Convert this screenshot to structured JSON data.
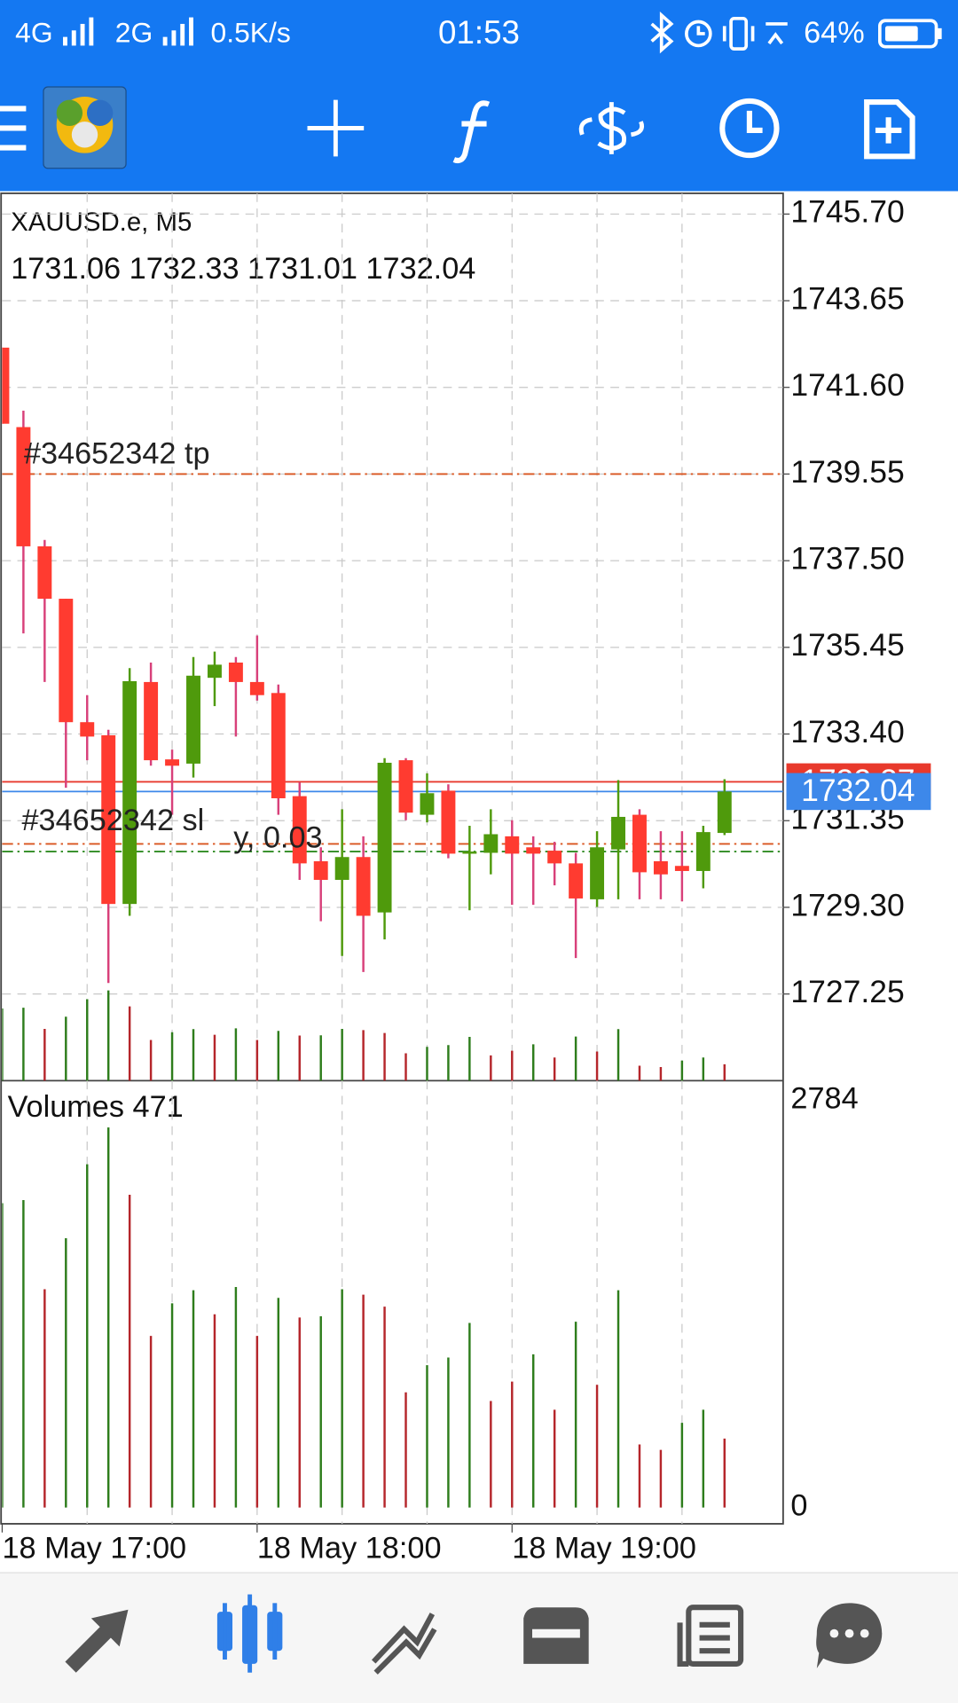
{
  "status_bar": {
    "network_1": "4G",
    "network_2": "2G",
    "speed": "0.5K/s",
    "time": "01:53",
    "battery": "64%"
  },
  "chart_data": [
    {
      "type": "candlestick",
      "title": "XAUUSD.e, M5",
      "categories": [
        "18 May 17:00",
        null,
        null,
        null,
        null,
        null,
        null,
        null,
        null,
        null,
        null,
        null,
        "18 May 18:00",
        null,
        null,
        null,
        null,
        null,
        null,
        null,
        null,
        null,
        null,
        null,
        "18 May 19:00",
        null,
        null,
        null,
        null,
        null,
        null,
        null,
        null,
        null,
        null
      ],
      "open": [
        1742.54,
        1740.66,
        1737.84,
        1736.6,
        1733.68,
        1733.37,
        1729.38,
        1734.63,
        1732.8,
        1732.7,
        1734.73,
        1735.09,
        1734.63,
        1734.37,
        1731.93,
        1730.39,
        1729.95,
        1730.49,
        1729.18,
        1732.78,
        1731.49,
        1732.06,
        1730.57,
        1730.59,
        1730.98,
        1730.72,
        1730.64,
        1730.34,
        1729.49,
        1730.67,
        1731.49,
        1730.39,
        1730.28,
        1730.16,
        1731.06
      ],
      "high": [
        1742.54,
        1741.05,
        1737.99,
        1736.6,
        1734.32,
        1733.5,
        1734.96,
        1735.09,
        1733.03,
        1735.22,
        1735.35,
        1735.22,
        1735.73,
        1734.57,
        1732.26,
        1730.72,
        1731.62,
        1730.98,
        1732.83,
        1732.83,
        1732.47,
        1732.21,
        1731.23,
        1731.62,
        1731.36,
        1730.98,
        1730.85,
        1730.59,
        1731.1,
        1732.31,
        1731.62,
        1731.1,
        1731.1,
        1731.23,
        1732.33
      ],
      "low": [
        1740.74,
        1735.78,
        1734.63,
        1732.13,
        1732.78,
        1727.51,
        1729.1,
        1732.65,
        1731.49,
        1732.37,
        1734.06,
        1733.34,
        1734.19,
        1731.49,
        1729.95,
        1728.97,
        1728.15,
        1727.77,
        1728.54,
        1731.36,
        1731.31,
        1730.46,
        1729.23,
        1730.08,
        1729.36,
        1729.36,
        1729.82,
        1728.1,
        1729.31,
        1729.49,
        1729.49,
        1729.49,
        1729.44,
        1729.75,
        1731.01
      ],
      "close": [
        1740.74,
        1737.84,
        1736.6,
        1733.68,
        1733.34,
        1729.38,
        1734.65,
        1732.78,
        1732.65,
        1734.78,
        1735.04,
        1734.63,
        1734.32,
        1731.88,
        1730.34,
        1729.95,
        1730.49,
        1729.1,
        1732.72,
        1731.54,
        1732.0,
        1730.57,
        1730.62,
        1731.03,
        1730.57,
        1730.57,
        1730.34,
        1729.51,
        1730.72,
        1731.44,
        1730.13,
        1730.08,
        1730.16,
        1731.08,
        1732.04
      ],
      "up_color": "#4f9a0c",
      "down_color": "#ff3b30",
      "ylim": [
        1725.2,
        1746.19
      ],
      "yticks": [
        {
          "value": 1745.7,
          "label": "1745.70"
        },
        1743.65,
        {
          "value": 1741.6,
          "label": "1741.60"
        },
        1739.55,
        {
          "value": 1737.5,
          "label": "1737.50"
        },
        1735.45,
        {
          "value": 1733.4,
          "label": "1733.40"
        },
        1731.35,
        {
          "value": 1729.3,
          "label": "1729.30"
        },
        1727.25
      ],
      "grid": true,
      "levels": [
        {
          "name": "#34652342 tp",
          "value": 1739.55,
          "color": "#d9541e"
        },
        {
          "name": "#34652342 sl",
          "value": 1730.8,
          "color": "#d9541e"
        },
        {
          "name": "y, 0.03",
          "value": 1730.62,
          "color": "#2e8b22"
        }
      ],
      "price_lines": [
        {
          "value": 1732.27,
          "color": "#e8392c"
        },
        {
          "value": 1732.04,
          "color": "#3d88ea"
        }
      ]
    },
    {
      "type": "bar",
      "title": "Volumes",
      "values": [
        2080,
        2101,
        1492,
        1841,
        2346,
        2598,
        2138,
        1173,
        1396,
        1485,
        1321,
        1507,
        1173,
        1433,
        1299,
        1307,
        1492,
        1455,
        1373,
        787,
        973,
        1025,
        1262,
        728,
        861,
        1047,
        668,
        1270,
        839,
        1485,
        431,
        394,
        579,
        668,
        471
      ],
      "colors": [
        "#2e7d1c",
        "#2e7d1c",
        "#b5262b",
        "#2e7d1c",
        "#2e7d1c",
        "#2e7d1c",
        "#b5262b",
        "#b5262b",
        "#2e7d1c",
        "#2e7d1c",
        "#b5262b",
        "#2e7d1c",
        "#b5262b",
        "#2e7d1c",
        "#b5262b",
        "#2e7d1c",
        "#2e7d1c",
        "#b5262b",
        "#b5262b",
        "#b5262b",
        "#2e7d1c",
        "#2e7d1c",
        "#2e7d1c",
        "#b5262b",
        "#b5262b",
        "#2e7d1c",
        "#b5262b",
        "#2e7d1c",
        "#b5262b",
        "#2e7d1c",
        "#b5262b",
        "#b5262b",
        "#2e7d1c",
        "#2e7d1c",
        "#b5262b"
      ],
      "ylim": [
        0,
        2784
      ],
      "yticks": [
        0,
        2784
      ]
    }
  ]
}
